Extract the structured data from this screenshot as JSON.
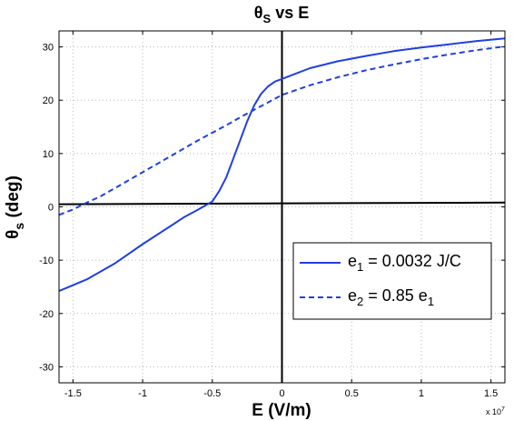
{
  "chart_data": {
    "type": "line",
    "title": {
      "main": "θ",
      "sub": "S",
      "rest": " vs E"
    },
    "xlabel": "E (V/m)",
    "ylabel": {
      "main": "θ",
      "sub": "s",
      "rest": " (deg)"
    },
    "x_multiplier": {
      "base": "x 10",
      "exp": "7"
    },
    "xlim": [
      -1.6,
      1.6
    ],
    "ylim": [
      -33,
      33
    ],
    "xticks": [
      -1.5,
      -1,
      -0.5,
      0,
      0.5,
      1,
      1.5
    ],
    "xtick_labels": [
      "-1.5",
      "-1",
      "-0.5",
      "0",
      "0.5",
      "1",
      "1.5"
    ],
    "yticks": [
      -30,
      -20,
      -10,
      0,
      10,
      20,
      30
    ],
    "ytick_labels": [
      "-30",
      "-20",
      "-10",
      "0",
      "10",
      "20",
      "30"
    ],
    "grid": true,
    "legend_position": "lower-right",
    "series": [
      {
        "name": "e1 = 0.0032 J/C",
        "legend": {
          "main": "e",
          "sub": "1",
          "rest": " = 0.0032 J/C"
        },
        "style": "solid",
        "color": "#1f3fe0",
        "x": [
          -1.6,
          -1.4,
          -1.2,
          -1.0,
          -0.8,
          -0.7,
          -0.6,
          -0.5,
          -0.45,
          -0.4,
          -0.35,
          -0.3,
          -0.25,
          -0.2,
          -0.15,
          -0.1,
          -0.05,
          0.0,
          0.1,
          0.2,
          0.4,
          0.6,
          0.8,
          1.0,
          1.2,
          1.4,
          1.6
        ],
        "y": [
          -15.8,
          -13.6,
          -10.6,
          -7.0,
          -3.6,
          -1.9,
          -0.5,
          1.0,
          3.0,
          5.5,
          9.0,
          12.5,
          16.0,
          19.0,
          21.2,
          22.6,
          23.5,
          24.0,
          25.0,
          26.0,
          27.3,
          28.3,
          29.2,
          29.9,
          30.5,
          31.1,
          31.6
        ]
      },
      {
        "name": "e2 = 0.85 e1",
        "legend": {
          "main": "e",
          "sub": "2",
          "rest": " = 0.85 e",
          "sub2": "1"
        },
        "style": "dashed",
        "color": "#1f3fe0",
        "x": [
          -1.6,
          -1.5,
          -1.4,
          -1.3,
          -1.2,
          -1.0,
          -0.8,
          -0.6,
          -0.4,
          -0.3,
          -0.2,
          -0.1,
          0.0,
          0.2,
          0.4,
          0.6,
          0.8,
          1.0,
          1.2,
          1.4,
          1.6
        ],
        "y": [
          -1.5,
          -0.5,
          0.8,
          2.0,
          3.5,
          6.5,
          9.5,
          12.5,
          15.3,
          16.8,
          18.2,
          19.6,
          21.0,
          22.8,
          24.3,
          25.6,
          26.7,
          27.7,
          28.6,
          29.4,
          30.1
        ]
      }
    ],
    "reference_lines": [
      {
        "name": "horizontal-baseline",
        "x": [
          -1.6,
          1.6
        ],
        "y": [
          0.5,
          0.8
        ],
        "color": "#000000"
      },
      {
        "name": "vertical-zero",
        "x": [
          0,
          0
        ],
        "y": [
          -33,
          33
        ],
        "color": "#000000"
      }
    ]
  }
}
